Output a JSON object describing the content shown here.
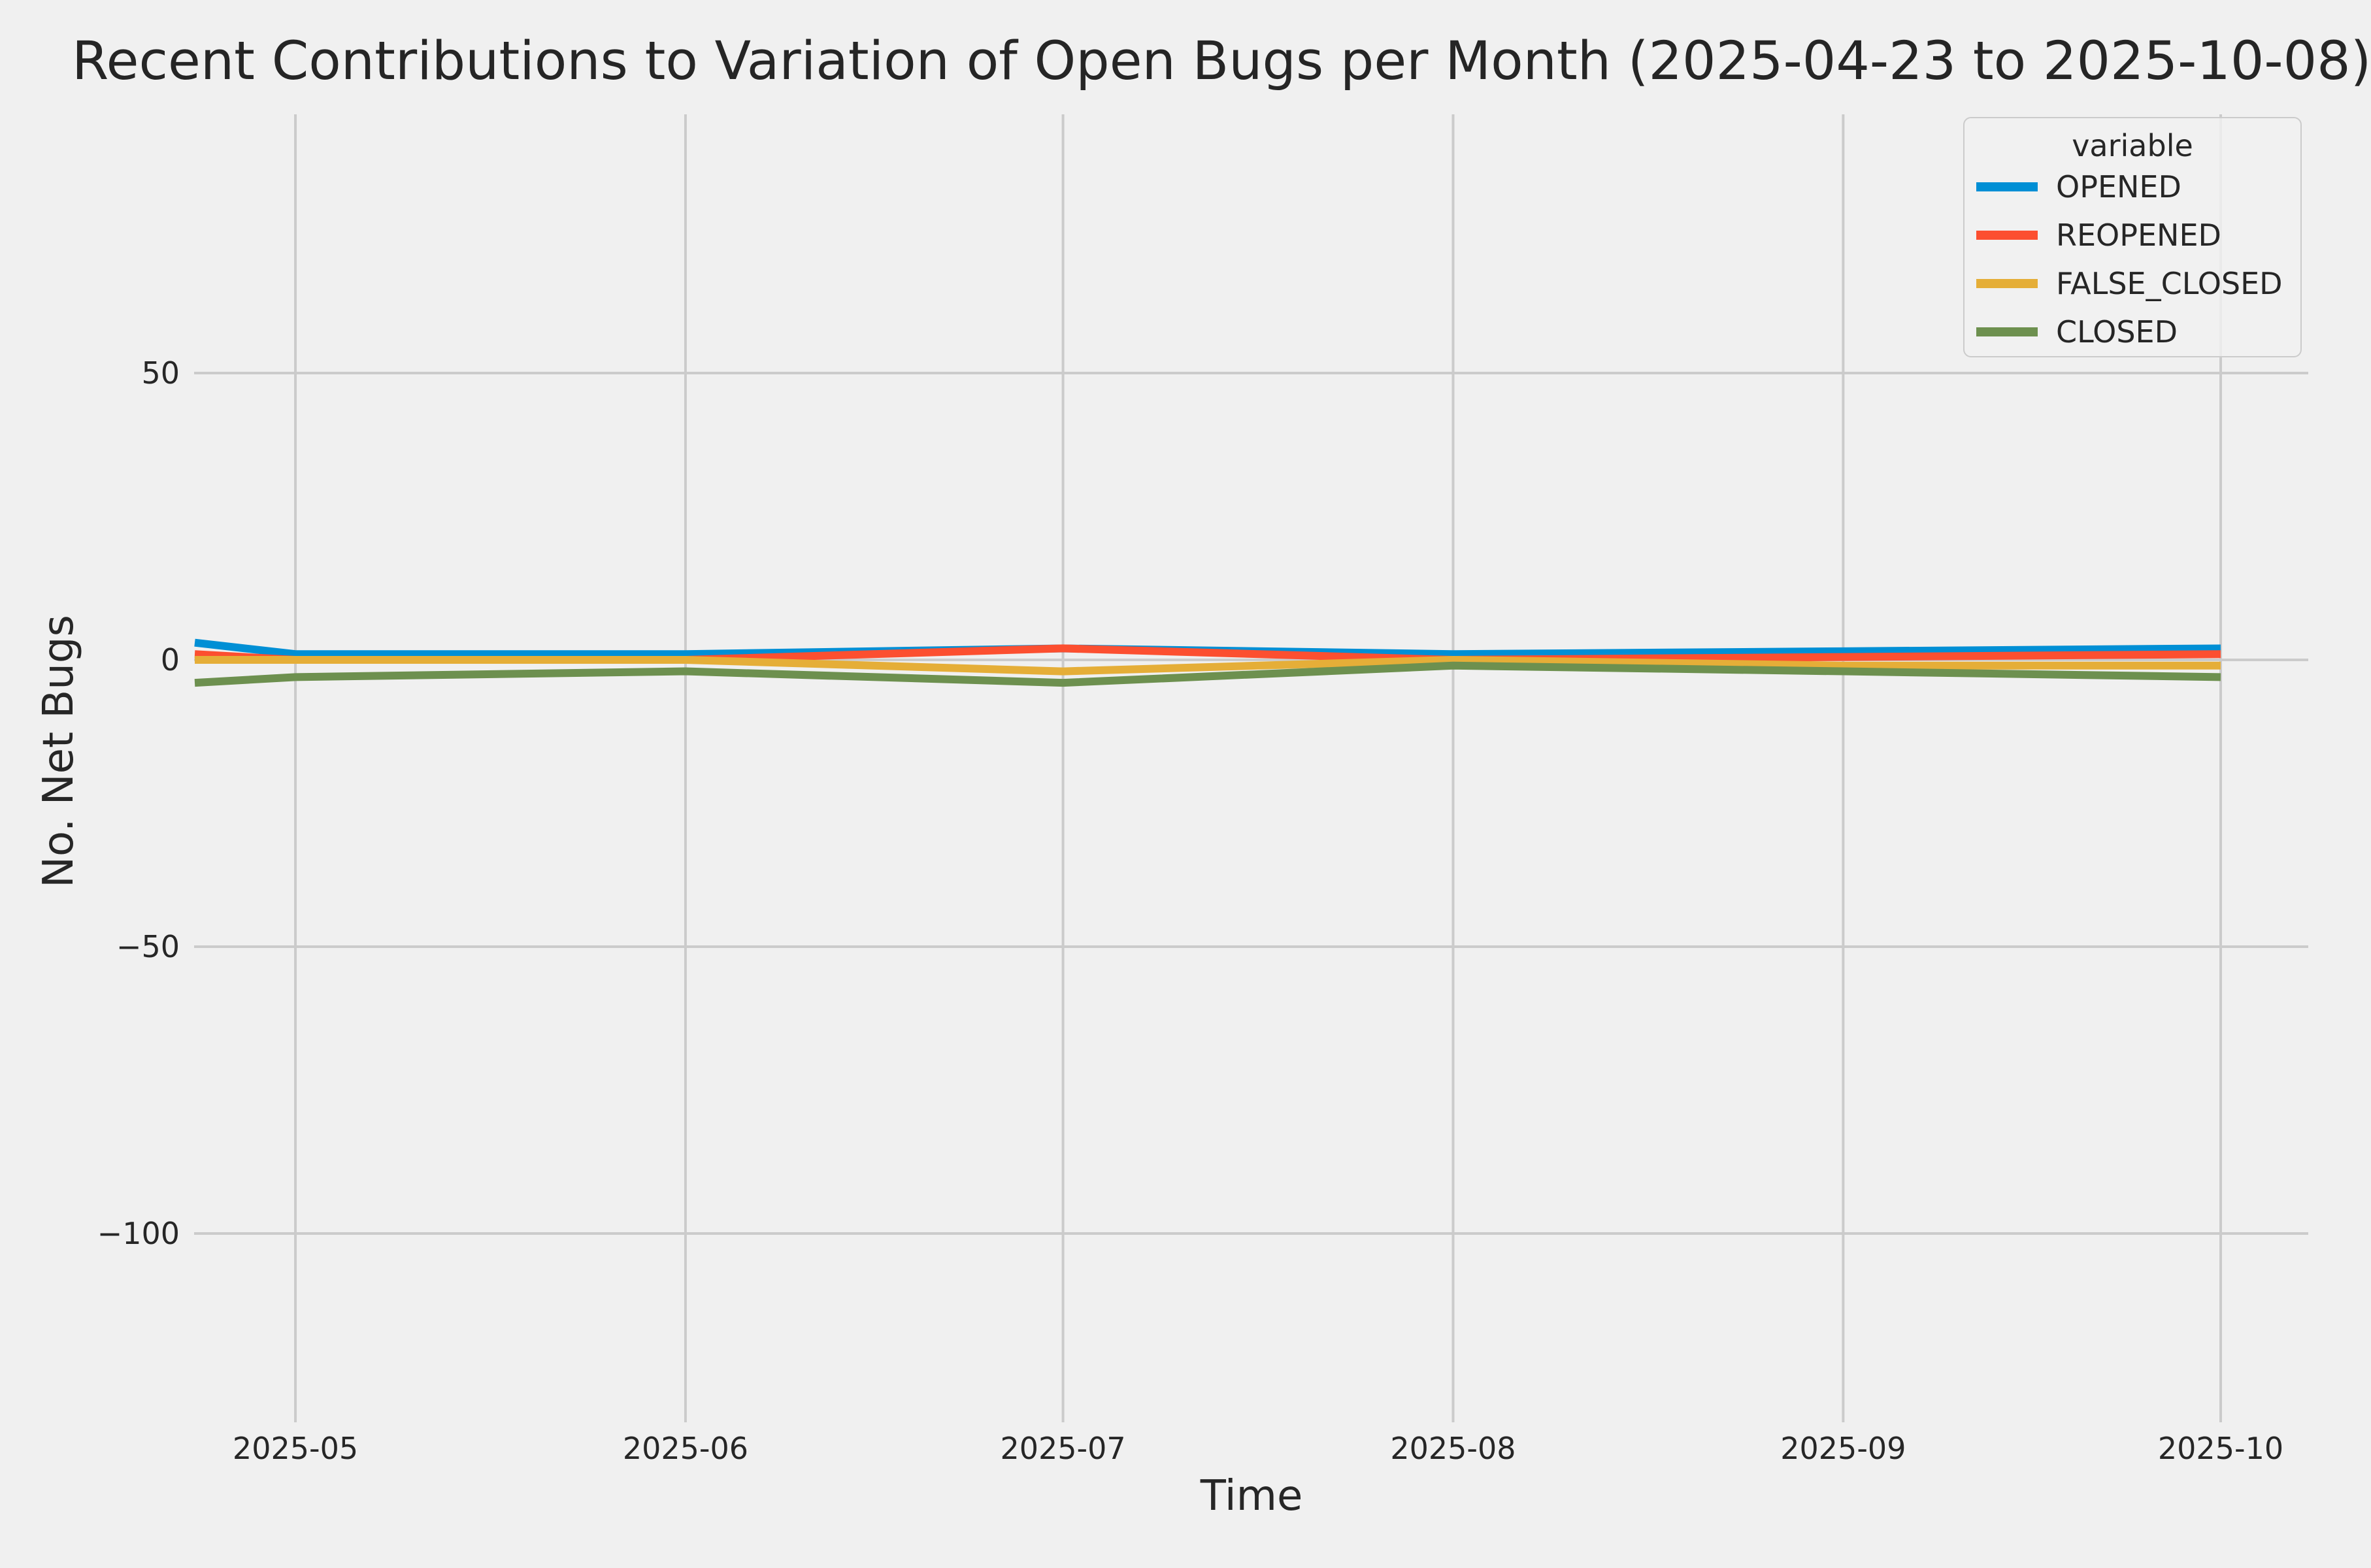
{
  "colors": {
    "background": "#f0f0f0",
    "grid": "#cbcbcb",
    "text": "#262626",
    "opened": "#008fd5",
    "reopened": "#fc4f30",
    "false_closed": "#e5ae38",
    "closed": "#6d904f"
  },
  "chart_data": {
    "type": "line",
    "title": "Recent Contributions to Variation of Open Bugs per Month (2025-04-23 to 2025-10-08)",
    "xlabel": "Time",
    "ylabel": "No. Net Bugs",
    "x": [
      "2025-04-23",
      "2025-05-01",
      "2025-06-01",
      "2025-07-01",
      "2025-08-01",
      "2025-09-01",
      "2025-10-01"
    ],
    "x_day_offsets": [
      0,
      8,
      39,
      69,
      100,
      131,
      161
    ],
    "x_tick_labels": [
      "2025-05",
      "2025-06",
      "2025-07",
      "2025-08",
      "2025-09",
      "2025-10"
    ],
    "x_tick_day_offsets": [
      8,
      39,
      69,
      100,
      131,
      161
    ],
    "y_tick_labels": [
      "50",
      "0",
      "−50",
      "−100"
    ],
    "y_tick_values": [
      50,
      0,
      -50,
      -100
    ],
    "ylim": [
      -133,
      95
    ],
    "grid": true,
    "legend_title": "variable",
    "legend_position": "upper right",
    "series": [
      {
        "name": "OPENED",
        "color": "#008fd5",
        "values": [
          3,
          1,
          1,
          2,
          1,
          1.5,
          2
        ]
      },
      {
        "name": "REOPENED",
        "color": "#fc4f30",
        "values": [
          1,
          0,
          0,
          2,
          0,
          0.5,
          1
        ]
      },
      {
        "name": "FALSE_CLOSED",
        "color": "#e5ae38",
        "values": [
          0,
          0,
          0,
          -2,
          0,
          -1,
          -1
        ]
      },
      {
        "name": "CLOSED",
        "color": "#6d904f",
        "values": [
          -4,
          -3,
          -2,
          -4,
          -1,
          -2,
          -3
        ]
      }
    ]
  }
}
